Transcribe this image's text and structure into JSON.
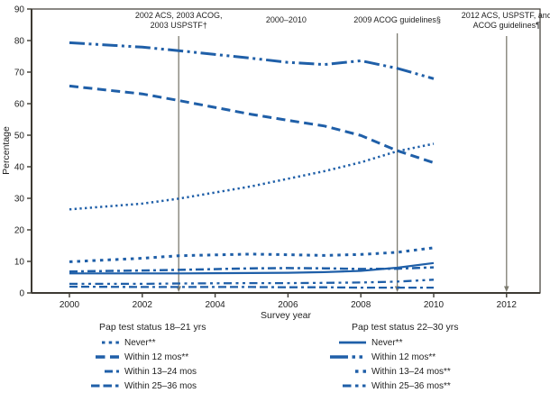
{
  "figure_title": "",
  "chart_data": {
    "type": "line",
    "title": "",
    "xlabel": "Survey year",
    "ylabel": "Percentage",
    "xlim": [
      1999,
      2012.9
    ],
    "ylim": [
      0,
      90
    ],
    "grid": false,
    "line_color": "#1f5fa8",
    "axis_color": "#3d3a33",
    "annotation_line_color": "#7c7b70",
    "xticks": [
      2000,
      2002,
      2004,
      2006,
      2008,
      2010,
      2012
    ],
    "yticks": [
      0,
      10,
      20,
      30,
      40,
      50,
      60,
      70,
      80,
      90
    ],
    "x": [
      2000,
      2002,
      2003,
      2005,
      2006,
      2007,
      2008,
      2009,
      2010
    ],
    "series": [
      {
        "group": "18–21 yrs",
        "label": "Never**",
        "dash": "2.3 3.4",
        "width": 2.5,
        "values": [
          26.5,
          28.3,
          29.9,
          33.8,
          36.2,
          38.6,
          41.4,
          44.9,
          47.3
        ]
      },
      {
        "group": "18–21 yrs",
        "label": "Within 12 mos**",
        "dash": "10 5.5",
        "width": 3,
        "values": [
          65.6,
          63.1,
          61.0,
          56.6,
          54.7,
          52.9,
          49.9,
          45.1,
          41.3
        ]
      },
      {
        "group": "18–21 yrs",
        "label": "Within 13–24 mos",
        "dash": "9 4 3 4",
        "width": 2.5,
        "values": [
          6.8,
          7.1,
          7.3,
          7.8,
          7.9,
          7.8,
          7.6,
          7.7,
          8.1
        ]
      },
      {
        "group": "18–21 yrs",
        "label": "Within 25–36 mos",
        "dash": "9 4 9 4 3 4",
        "width": 2.3,
        "values": [
          2.0,
          1.9,
          1.9,
          1.9,
          1.8,
          1.8,
          1.7,
          1.7,
          1.7
        ]
      },
      {
        "group": "22–30 yrs",
        "label": "Never**",
        "dash": "",
        "width": 2.2,
        "values": [
          6.2,
          6.2,
          6.2,
          6.3,
          6.4,
          6.6,
          7.0,
          8.0,
          9.5
        ]
      },
      {
        "group": "22–30 yrs",
        "label": "Within 12 mos**",
        "dash": "17 4.5 3 4.5 3 4.5",
        "width": 3,
        "values": [
          79.3,
          77.9,
          76.8,
          74.4,
          73.1,
          72.4,
          73.6,
          71.2,
          67.9
        ]
      },
      {
        "group": "22–30 yrs",
        "label": "Within 13–24 mos**",
        "dash": "3.5 5",
        "width": 3,
        "values": [
          9.9,
          11.0,
          11.8,
          12.3,
          12.1,
          11.9,
          12.2,
          12.9,
          14.3
        ]
      },
      {
        "group": "22–30 yrs",
        "label": "Within 25–36 mos**",
        "dash": "9 4.5 3 4.5 3 4.5",
        "width": 2.3,
        "values": [
          2.9,
          2.9,
          3.0,
          3.1,
          3.1,
          3.2,
          3.3,
          3.6,
          4.2
        ]
      }
    ],
    "annotations": [
      {
        "lines": [
          "2002 ACS, 2003 ACOG,",
          "2003 USPSTF†"
        ],
        "year": 2003,
        "arrow_line": true
      },
      {
        "lines": [
          "2000–2010"
        ],
        "year": 2005.95,
        "arrow_line": false
      },
      {
        "lines": [
          "2009 ACOG guidelines§"
        ],
        "year": 2009,
        "arrow_line": true
      },
      {
        "lines": [
          "2012 ACS, USPSTF, and",
          "ACOG guidelines¶"
        ],
        "year": 2012,
        "arrow_line": true
      }
    ],
    "legends": [
      {
        "title": "Pap test status 18–21 yrs",
        "series": [
          0,
          1,
          2,
          3
        ]
      },
      {
        "title": "Pap test status 22–30 yrs",
        "series": [
          4,
          5,
          6,
          7
        ]
      }
    ]
  }
}
